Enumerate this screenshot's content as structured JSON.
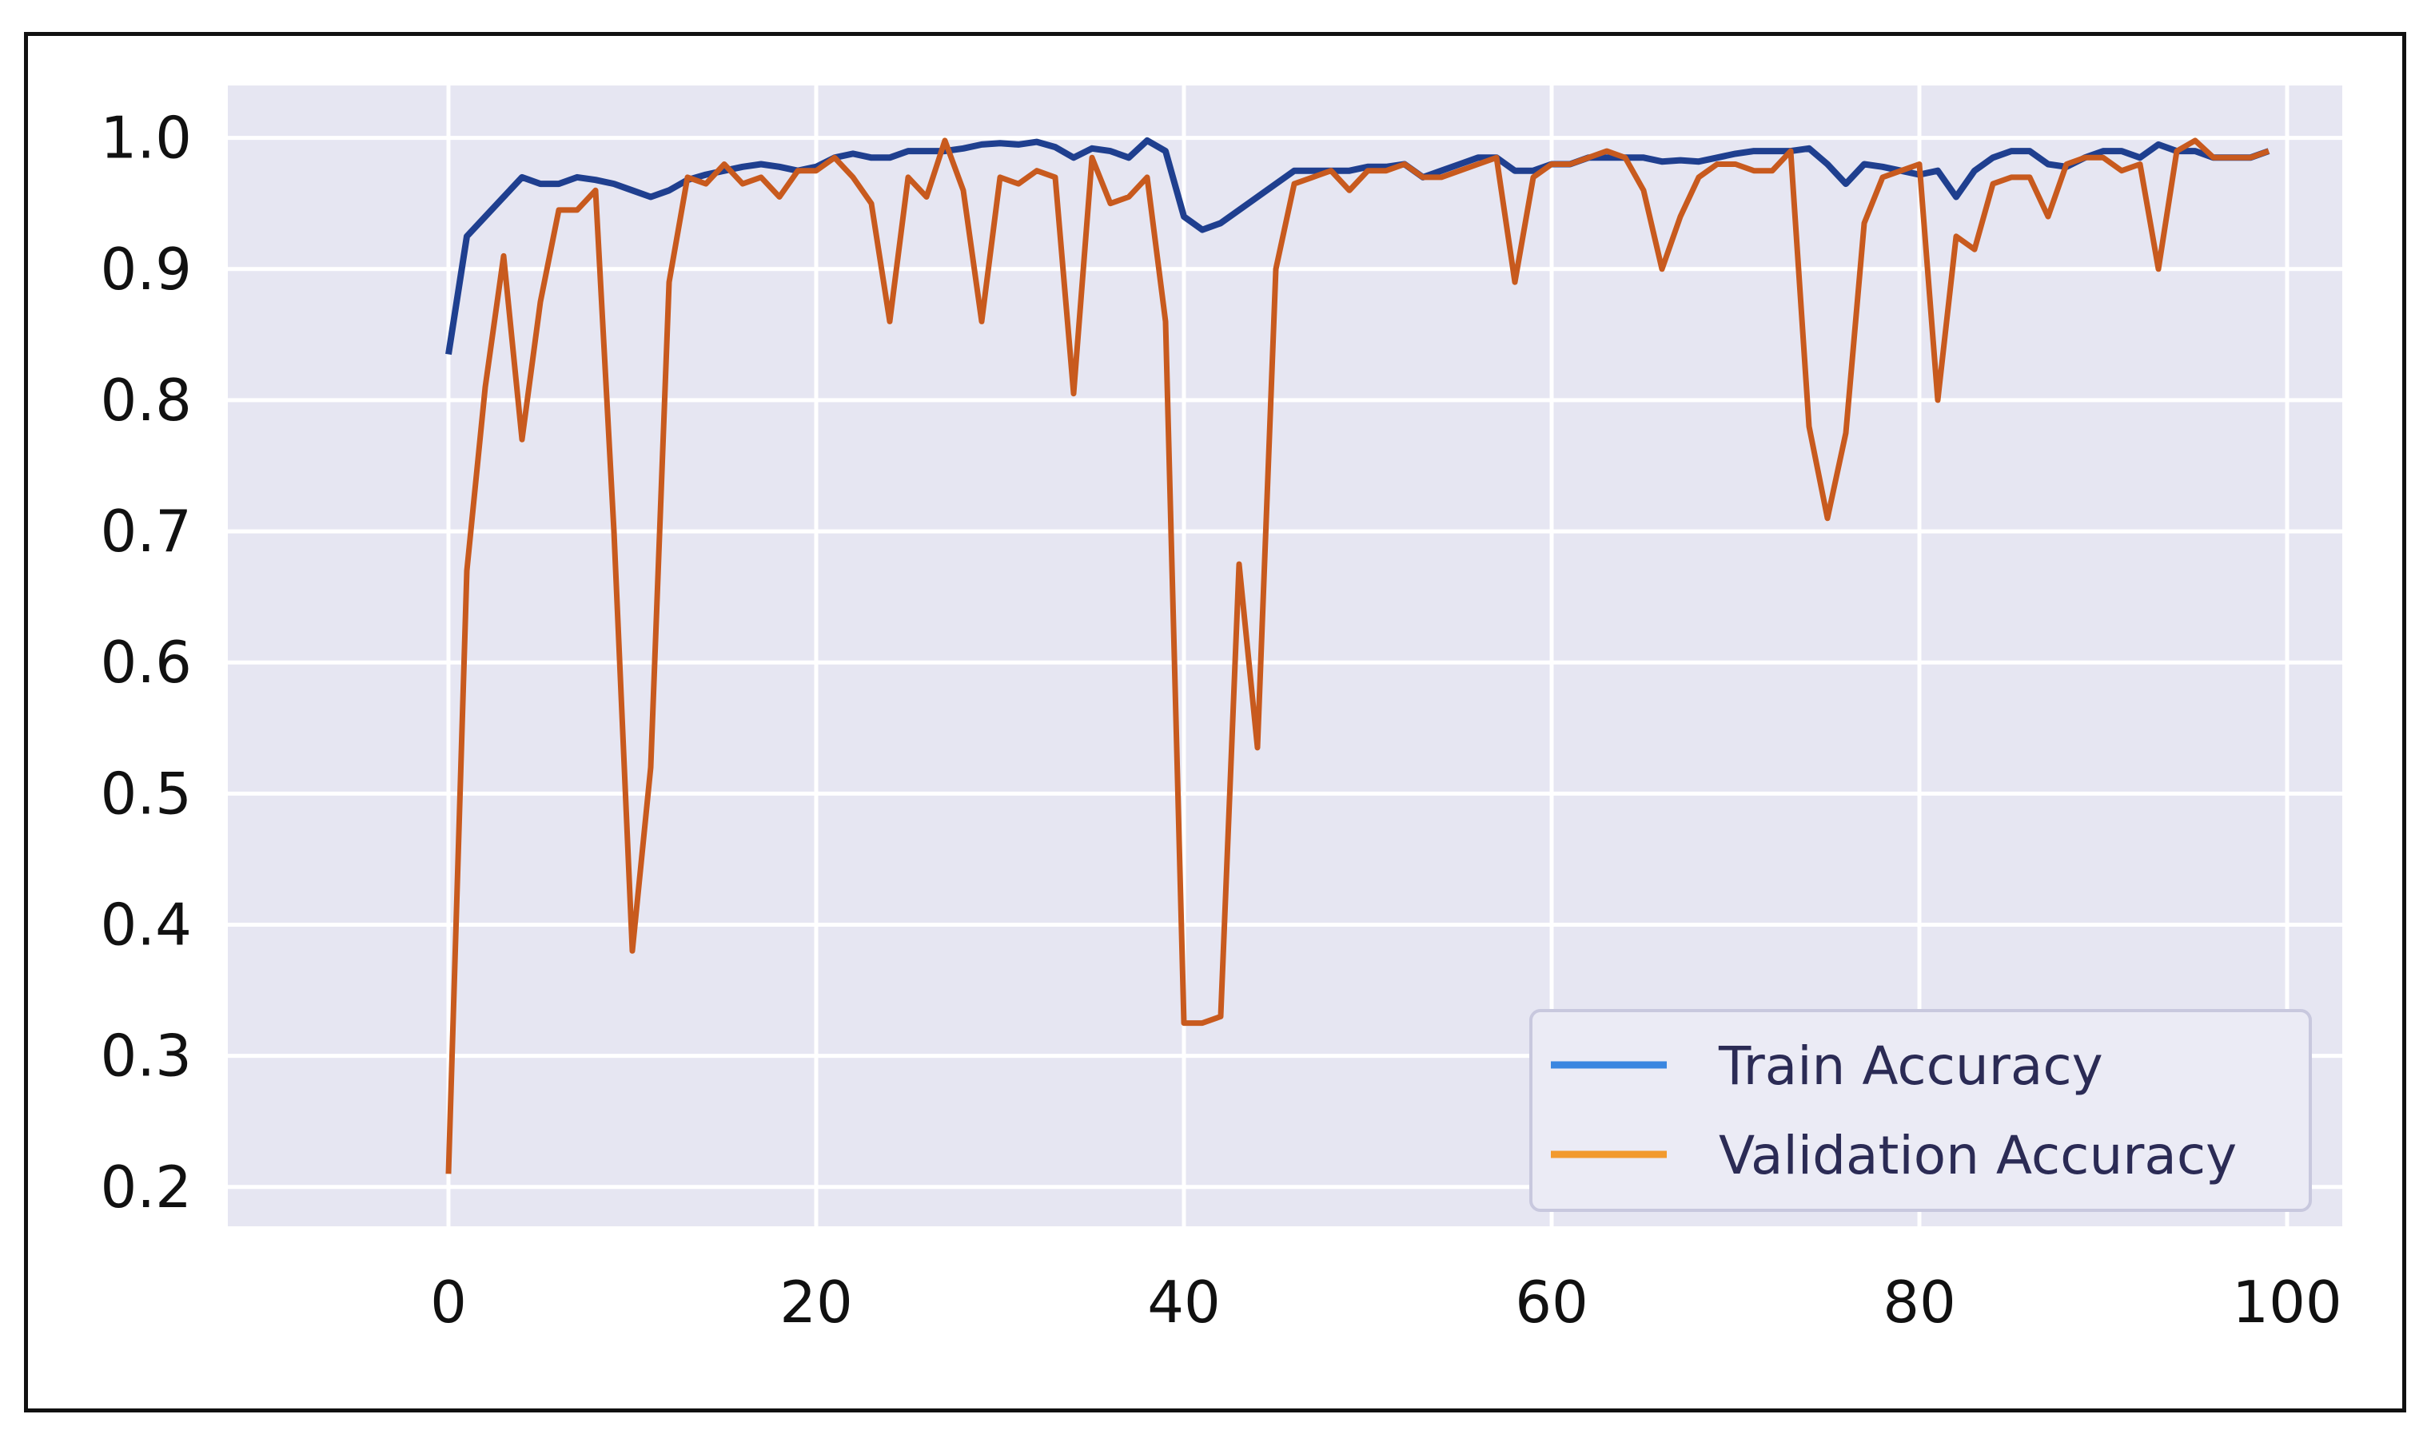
{
  "chart_data": {
    "type": "line",
    "title": "",
    "xlabel": "",
    "ylabel": "",
    "xlim": [
      -12,
      103
    ],
    "ylim": [
      0.17,
      1.04
    ],
    "xticks": [
      0,
      20,
      40,
      60,
      80,
      100
    ],
    "yticks": [
      0.2,
      0.3,
      0.4,
      0.5,
      0.6,
      0.7,
      0.8,
      0.9,
      1.0
    ],
    "xtick_labels": [
      "0",
      "20",
      "40",
      "60",
      "80",
      "100"
    ],
    "ytick_labels": [
      "0.2",
      "0.3",
      "0.4",
      "0.5",
      "0.6",
      "0.7",
      "0.8",
      "0.9",
      "1.0"
    ],
    "grid": true,
    "legend_position": "bottom-right",
    "background_color": "#e6e6f2",
    "series": [
      {
        "name": "Train Accuracy",
        "color": "#1f3f8f",
        "legend_color": "#3a86e0",
        "x": [
          0,
          1,
          2,
          3,
          4,
          5,
          6,
          7,
          8,
          9,
          10,
          11,
          12,
          13,
          14,
          15,
          16,
          17,
          18,
          19,
          20,
          21,
          22,
          23,
          24,
          25,
          26,
          27,
          28,
          29,
          30,
          31,
          32,
          33,
          34,
          35,
          36,
          37,
          38,
          39,
          40,
          41,
          42,
          43,
          44,
          45,
          46,
          47,
          48,
          49,
          50,
          51,
          52,
          53,
          54,
          55,
          56,
          57,
          58,
          59,
          60,
          61,
          62,
          63,
          64,
          65,
          66,
          67,
          68,
          69,
          70,
          71,
          72,
          73,
          74,
          75,
          76,
          77,
          78,
          79,
          80,
          81,
          82,
          83,
          84,
          85,
          86,
          87,
          88,
          89,
          90,
          91,
          92,
          93,
          94,
          95,
          96,
          97,
          98,
          99
        ],
        "y": [
          0.835,
          0.925,
          0.94,
          0.955,
          0.97,
          0.965,
          0.965,
          0.97,
          0.968,
          0.965,
          0.96,
          0.955,
          0.96,
          0.968,
          0.972,
          0.975,
          0.978,
          0.98,
          0.978,
          0.975,
          0.978,
          0.985,
          0.988,
          0.985,
          0.985,
          0.99,
          0.99,
          0.99,
          0.992,
          0.995,
          0.996,
          0.995,
          0.997,
          0.993,
          0.985,
          0.992,
          0.99,
          0.985,
          0.998,
          0.99,
          0.94,
          0.93,
          0.935,
          0.945,
          0.955,
          0.965,
          0.975,
          0.975,
          0.975,
          0.975,
          0.978,
          0.978,
          0.98,
          0.97,
          0.975,
          0.98,
          0.985,
          0.985,
          0.975,
          0.975,
          0.98,
          0.98,
          0.985,
          0.985,
          0.985,
          0.985,
          0.982,
          0.983,
          0.982,
          0.985,
          0.988,
          0.99,
          0.99,
          0.99,
          0.992,
          0.98,
          0.965,
          0.98,
          0.978,
          0.975,
          0.972,
          0.975,
          0.955,
          0.975,
          0.985,
          0.99,
          0.99,
          0.98,
          0.978,
          0.985,
          0.99,
          0.99,
          0.985,
          0.995,
          0.99,
          0.99,
          0.985,
          0.985,
          0.985,
          0.99
        ]
      },
      {
        "name": "Validation Accuracy",
        "color": "#c85a1e",
        "legend_color": "#f29a2e",
        "x": [
          0,
          1,
          2,
          3,
          4,
          5,
          6,
          7,
          8,
          9,
          10,
          11,
          12,
          13,
          14,
          15,
          16,
          17,
          18,
          19,
          20,
          21,
          22,
          23,
          24,
          25,
          26,
          27,
          28,
          29,
          30,
          31,
          32,
          33,
          34,
          35,
          36,
          37,
          38,
          39,
          40,
          41,
          42,
          43,
          44,
          45,
          46,
          47,
          48,
          49,
          50,
          51,
          52,
          53,
          54,
          55,
          56,
          57,
          58,
          59,
          60,
          61,
          62,
          63,
          64,
          65,
          66,
          67,
          68,
          69,
          70,
          71,
          72,
          73,
          74,
          75,
          76,
          77,
          78,
          79,
          80,
          81,
          82,
          83,
          84,
          85,
          86,
          87,
          88,
          89,
          90,
          91,
          92,
          93,
          94,
          95,
          96,
          97,
          98,
          99
        ],
        "y": [
          0.21,
          0.67,
          0.81,
          0.91,
          0.77,
          0.875,
          0.945,
          0.945,
          0.96,
          0.7,
          0.38,
          0.52,
          0.89,
          0.97,
          0.965,
          0.98,
          0.965,
          0.97,
          0.955,
          0.975,
          0.975,
          0.985,
          0.97,
          0.95,
          0.86,
          0.97,
          0.955,
          0.998,
          0.96,
          0.86,
          0.97,
          0.965,
          0.975,
          0.97,
          0.805,
          0.985,
          0.95,
          0.955,
          0.97,
          0.86,
          0.325,
          0.325,
          0.33,
          0.675,
          0.535,
          0.9,
          0.965,
          0.97,
          0.975,
          0.96,
          0.975,
          0.975,
          0.98,
          0.97,
          0.97,
          0.975,
          0.98,
          0.985,
          0.89,
          0.97,
          0.98,
          0.98,
          0.985,
          0.99,
          0.985,
          0.96,
          0.9,
          0.94,
          0.97,
          0.98,
          0.98,
          0.975,
          0.975,
          0.99,
          0.78,
          0.71,
          0.775,
          0.935,
          0.97,
          0.975,
          0.98,
          0.8,
          0.925,
          0.915,
          0.965,
          0.97,
          0.97,
          0.94,
          0.98,
          0.985,
          0.985,
          0.975,
          0.98,
          0.9,
          0.99,
          0.998,
          0.985,
          0.985,
          0.985,
          0.99
        ]
      }
    ]
  }
}
